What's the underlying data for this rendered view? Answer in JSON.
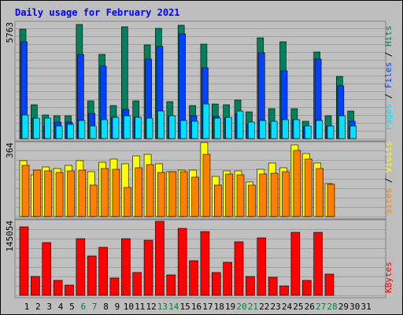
{
  "title": "Daily usage for February 2021",
  "colors": {
    "hits": "#00805C",
    "files": "#0040FF",
    "pages": "#00E0FF",
    "visits": "#FFFF00",
    "sites": "#FF8000",
    "kbytes": "#FF0000",
    "title": "#0000FF",
    "panel": "#C0C0C0",
    "frame": "#BEBEBE",
    "weekend": "#008040"
  },
  "labels": {
    "pages": "Pages",
    "files": "Files",
    "hits": "Hits",
    "sites": "Sites",
    "visits": "Visits",
    "kbytes": "KBytes",
    "sep": " / "
  },
  "chart_data": {
    "type": "bar",
    "title": "Daily usage for February 2021",
    "categories": [
      "1",
      "2",
      "3",
      "4",
      "5",
      "6",
      "7",
      "8",
      "9",
      "10",
      "11",
      "12",
      "13",
      "14",
      "15",
      "16",
      "17",
      "18",
      "19",
      "20",
      "21",
      "22",
      "23",
      "24",
      "25",
      "26",
      "27",
      "28",
      "29",
      "30",
      "31"
    ],
    "weekend_days": [
      "6",
      "7",
      "13",
      "14",
      "20",
      "21",
      "27",
      "28"
    ],
    "panels": [
      {
        "name": "traffic",
        "ymax_label": "5763",
        "ymax": 5763,
        "series": [
          {
            "name": "Hits",
            "values": [
              5420,
              1690,
              1150,
              1110,
              1110,
              5630,
              1860,
              4180,
              1630,
              5530,
              1850,
              4650,
              5470,
              1820,
              5590,
              1650,
              4670,
              1720,
              1670,
              1920,
              1330,
              4990,
              1480,
              4800,
              1490,
              870,
              4270,
              1130,
              3080,
              1360,
              0
            ]
          },
          {
            "name": "Files",
            "values": [
              4800,
              1010,
              640,
              800,
              830,
              4150,
              1230,
              3590,
              1040,
              1440,
              1040,
              3950,
              4550,
              1080,
              5190,
              1140,
              3490,
              1080,
              1020,
              1250,
              690,
              4240,
              740,
              3360,
              950,
              580,
              3950,
              610,
              2610,
              860,
              0
            ]
          },
          {
            "name": "Pages",
            "values": [
              1180,
              1010,
              1010,
              630,
              690,
              890,
              630,
              950,
              1050,
              1110,
              1060,
              1010,
              1360,
              1130,
              880,
              870,
              1720,
              1010,
              1050,
              1380,
              800,
              880,
              860,
              920,
              920,
              620,
              890,
              620,
              1120,
              630,
              0
            ]
          }
        ]
      },
      {
        "name": "visitors",
        "ymax_label": "364",
        "ymax": 364,
        "series": [
          {
            "name": "Visits",
            "values": [
              273,
              206,
              243,
              236,
              253,
              273,
              219,
              267,
              282,
              260,
              298,
              306,
              258,
              221,
              227,
              228,
              364,
              196,
              224,
              224,
              172,
              233,
              265,
              240,
              352,
              308,
              264,
              164,
              0,
              0,
              0
            ]
          },
          {
            "name": "Sites",
            "values": [
              250,
              229,
              223,
              215,
              223,
              227,
              155,
              236,
              232,
              142,
              240,
              255,
              218,
              222,
              222,
              194,
              307,
              154,
              211,
              205,
              156,
              210,
              214,
              222,
              324,
              283,
              236,
              159,
              0,
              0,
              0
            ]
          }
        ]
      },
      {
        "name": "volume",
        "ymax_label": "145054",
        "ymax": 145054,
        "series": [
          {
            "name": "KBytes",
            "values": [
              134000,
              37150,
              103000,
              28800,
              20600,
              111000,
              77200,
              94800,
              34000,
              111000,
              45000,
              107300,
              145054,
              40700,
              131500,
              67800,
              125500,
              45000,
              65000,
              104600,
              37000,
              112800,
              36200,
              19200,
              123300,
              28800,
              123300,
              42000,
              0,
              0,
              0
            ]
          }
        ]
      }
    ]
  }
}
